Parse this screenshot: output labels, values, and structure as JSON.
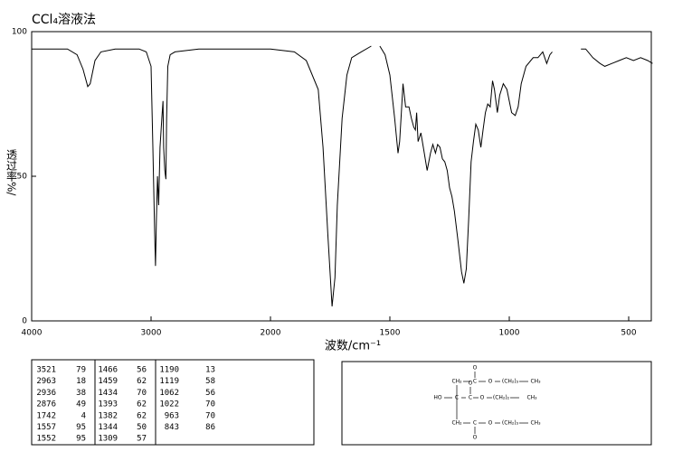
{
  "chart_data": {
    "type": "line",
    "title": "CCl₄溶液法",
    "x_label": "波数/cm⁻¹",
    "y_label": "透过率%/",
    "xlim": [
      4000,
      400
    ],
    "xticks": [
      4000,
      3000,
      2000,
      1500,
      1000,
      500
    ],
    "ylim": [
      0,
      100
    ],
    "yticks": [
      0,
      50,
      100
    ],
    "x": [
      4000,
      3800,
      3700,
      3620,
      3570,
      3530,
      3510,
      3470,
      3420,
      3300,
      3100,
      3040,
      3000,
      2985,
      2970,
      2963,
      2955,
      2946,
      2936,
      2925,
      2910,
      2900,
      2895,
      2885,
      2876,
      2870,
      2860,
      2840,
      2800,
      2600,
      2300,
      2000,
      1900,
      1850,
      1800,
      1780,
      1760,
      1742,
      1730,
      1720,
      1700,
      1680,
      1660,
      1620,
      1578,
      null,
      1542,
      1520,
      1500,
      1480,
      1466,
      1459,
      1452,
      1445,
      1434,
      1420,
      1410,
      1400,
      1393,
      1388,
      1382,
      1370,
      1360,
      1344,
      1330,
      1320,
      1309,
      1300,
      1290,
      1280,
      1270,
      1260,
      1250,
      1240,
      1230,
      1215,
      1200,
      1190,
      1180,
      1170,
      1160,
      1150,
      1140,
      1130,
      1119,
      1110,
      1100,
      1090,
      1080,
      1070,
      1062,
      1050,
      1040,
      1025,
      1010,
      990,
      975,
      963,
      950,
      930,
      900,
      880,
      860,
      843,
      830,
      820,
      null,
      700,
      680,
      650,
      620,
      600,
      570,
      540,
      510,
      480,
      450,
      420,
      400
    ],
    "series": [
      {
        "color": "#000000",
        "values": [
          94,
          94,
          94,
          92,
          87,
          81,
          82,
          90,
          93,
          94,
          94,
          93,
          88,
          60,
          30,
          19,
          35,
          50,
          40,
          60,
          70,
          76,
          60,
          52,
          49,
          70,
          88,
          92,
          93,
          94,
          94,
          94,
          93,
          90,
          80,
          60,
          30,
          5,
          15,
          40,
          70,
          85,
          91,
          93,
          95,
          null,
          95,
          92,
          85,
          70,
          58,
          62,
          72,
          82,
          74,
          74,
          70,
          67,
          66,
          72,
          62,
          65,
          60,
          52,
          58,
          61,
          58,
          61,
          60,
          56,
          55,
          52,
          46,
          43,
          38,
          28,
          17,
          13,
          18,
          35,
          55,
          62,
          68,
          66,
          60,
          66,
          72,
          75,
          74,
          83,
          80,
          72,
          78,
          82,
          80,
          72,
          71,
          74,
          82,
          88,
          91,
          91,
          93,
          89,
          92,
          93,
          null,
          94,
          94,
          91,
          89,
          88,
          89,
          90,
          91,
          90,
          91,
          90,
          89
        ]
      }
    ]
  },
  "peak_table": [
    [
      [
        3521,
        79
      ],
      [
        2963,
        18
      ],
      [
        2936,
        38
      ],
      [
        2876,
        49
      ],
      [
        1742,
        4
      ],
      [
        1557,
        95
      ],
      [
        1552,
        95
      ]
    ],
    [
      [
        1466,
        56
      ],
      [
        1459,
        62
      ],
      [
        1434,
        70
      ],
      [
        1393,
        62
      ],
      [
        1382,
        62
      ],
      [
        1344,
        50
      ],
      [
        1309,
        57
      ]
    ],
    [
      [
        1190,
        13
      ],
      [
        1119,
        58
      ],
      [
        1062,
        56
      ],
      [
        1022,
        70
      ],
      [
        963,
        70
      ],
      [
        843,
        86
      ]
    ]
  ],
  "structure": [
    "O",
    "CH₂",
    "C",
    "O",
    "(CH₂)₃",
    "CH₃",
    "HO",
    "C",
    "C",
    "O",
    "(CH₂)₂",
    "CH₃",
    "O",
    "CH₂",
    "C",
    "O",
    "(CH₂)₃",
    "CH₃",
    "O"
  ]
}
